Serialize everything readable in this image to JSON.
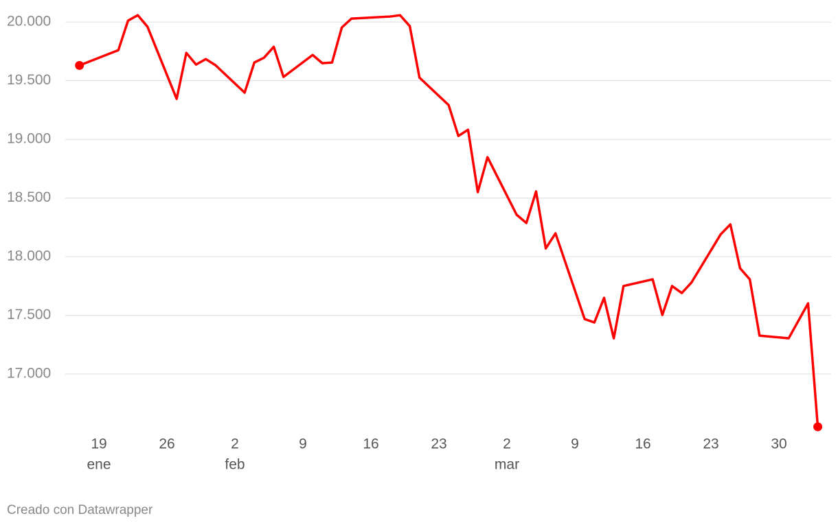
{
  "chart_data": {
    "type": "line",
    "x": [
      "01-17",
      "01-21",
      "01-22",
      "01-23",
      "01-24",
      "01-27",
      "01-28",
      "01-29",
      "01-30",
      "01-31",
      "02-03",
      "02-04",
      "02-05",
      "02-06",
      "02-07",
      "02-10",
      "02-11",
      "02-12",
      "02-13",
      "02-14",
      "02-18",
      "02-19",
      "02-20",
      "02-21",
      "02-24",
      "02-25",
      "02-26",
      "02-27",
      "02-28",
      "03-03",
      "03-04",
      "03-05",
      "03-06",
      "03-07",
      "03-10",
      "03-11",
      "03-12",
      "03-13",
      "03-14",
      "03-17",
      "03-18",
      "03-19",
      "03-20",
      "03-21",
      "03-24",
      "03-25",
      "03-26",
      "03-27",
      "03-28",
      "03-31",
      "04-02",
      "04-03"
    ],
    "series": [
      {
        "color": "#ff0000",
        "values": [
          19630,
          19760,
          20012,
          20058,
          19960,
          19345,
          19737,
          19637,
          19684,
          19632,
          19398,
          19655,
          19696,
          19789,
          19532,
          19719,
          19649,
          19655,
          19953,
          20029,
          20047,
          20058,
          19965,
          19526,
          19292,
          19029,
          19082,
          18550,
          18848,
          18357,
          18287,
          18556,
          18070,
          18199,
          17468,
          17439,
          17649,
          17304,
          17750,
          17807,
          17503,
          17750,
          17690,
          17780,
          18190,
          18275,
          17901,
          17807,
          17327,
          17304,
          17602,
          16550
        ]
      }
    ],
    "ylim": [
      16500,
      20100
    ],
    "yticks": [
      {
        "value": 17000,
        "label": "17.000"
      },
      {
        "value": 17500,
        "label": "17.500"
      },
      {
        "value": 18000,
        "label": "18.000"
      },
      {
        "value": 18500,
        "label": "18.500"
      },
      {
        "value": 19000,
        "label": "19.000"
      },
      {
        "value": 19500,
        "label": "19.500"
      },
      {
        "value": 20000,
        "label": "20.000"
      }
    ],
    "xticks": [
      {
        "value": "01-19",
        "label": [
          "19",
          "ene"
        ]
      },
      {
        "value": "01-26",
        "label": [
          "26"
        ]
      },
      {
        "value": "02-02",
        "label": [
          "2",
          "feb"
        ]
      },
      {
        "value": "02-09",
        "label": [
          "9"
        ]
      },
      {
        "value": "02-16",
        "label": [
          "16"
        ]
      },
      {
        "value": "02-23",
        "label": [
          "23"
        ]
      },
      {
        "value": "03-02",
        "label": [
          "2",
          "mar"
        ]
      },
      {
        "value": "03-09",
        "label": [
          "9"
        ]
      },
      {
        "value": "03-16",
        "label": [
          "16"
        ]
      },
      {
        "value": "03-23",
        "label": [
          "23"
        ]
      },
      {
        "value": "03-30",
        "label": [
          "30"
        ]
      }
    ],
    "grid": true,
    "footer": "Creado con Datawrapper"
  }
}
